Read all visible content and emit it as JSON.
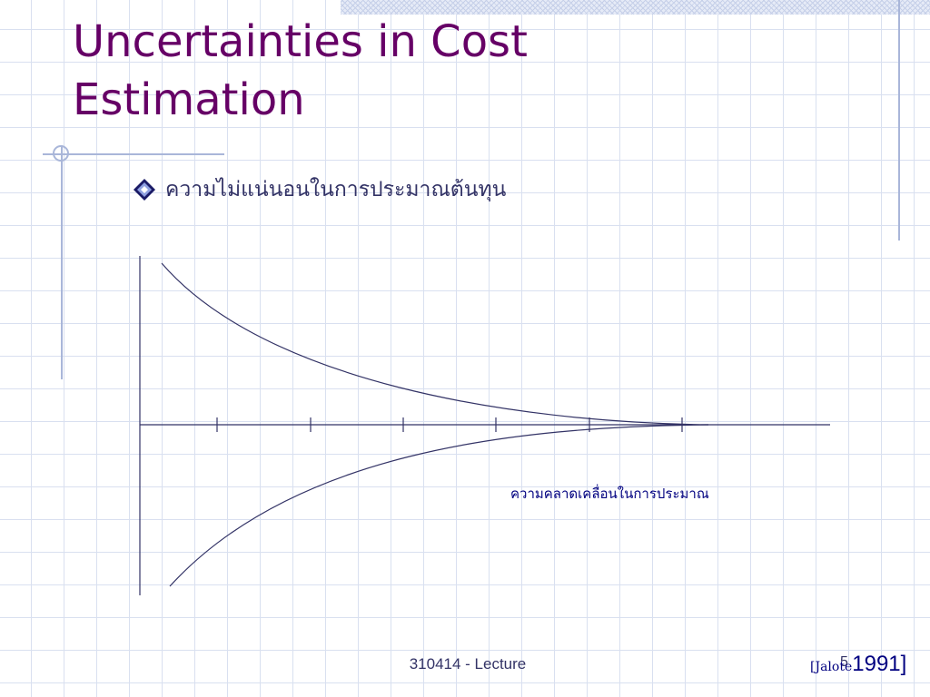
{
  "slide": {
    "title": "Uncertainties in Cost Estimation",
    "bullet": {
      "icon": "diamond-bullet-icon",
      "text": "ความไม่แน่นอนในการประมาณต้นทุน"
    },
    "diagram": {
      "annotation": "ความคลาดเคลื่อนในการประมาณ",
      "line_color": "#333366",
      "annotation_color": "#000080"
    },
    "footer": {
      "lecture": "310414 - Lecture",
      "page_number": "5",
      "citation_author": "[Jalote",
      "citation_year": "1991]"
    }
  },
  "colors": {
    "title": "#660066",
    "text": "#333366",
    "grid": "#d9e0f0",
    "accent_rules": "#a9b6d9"
  }
}
